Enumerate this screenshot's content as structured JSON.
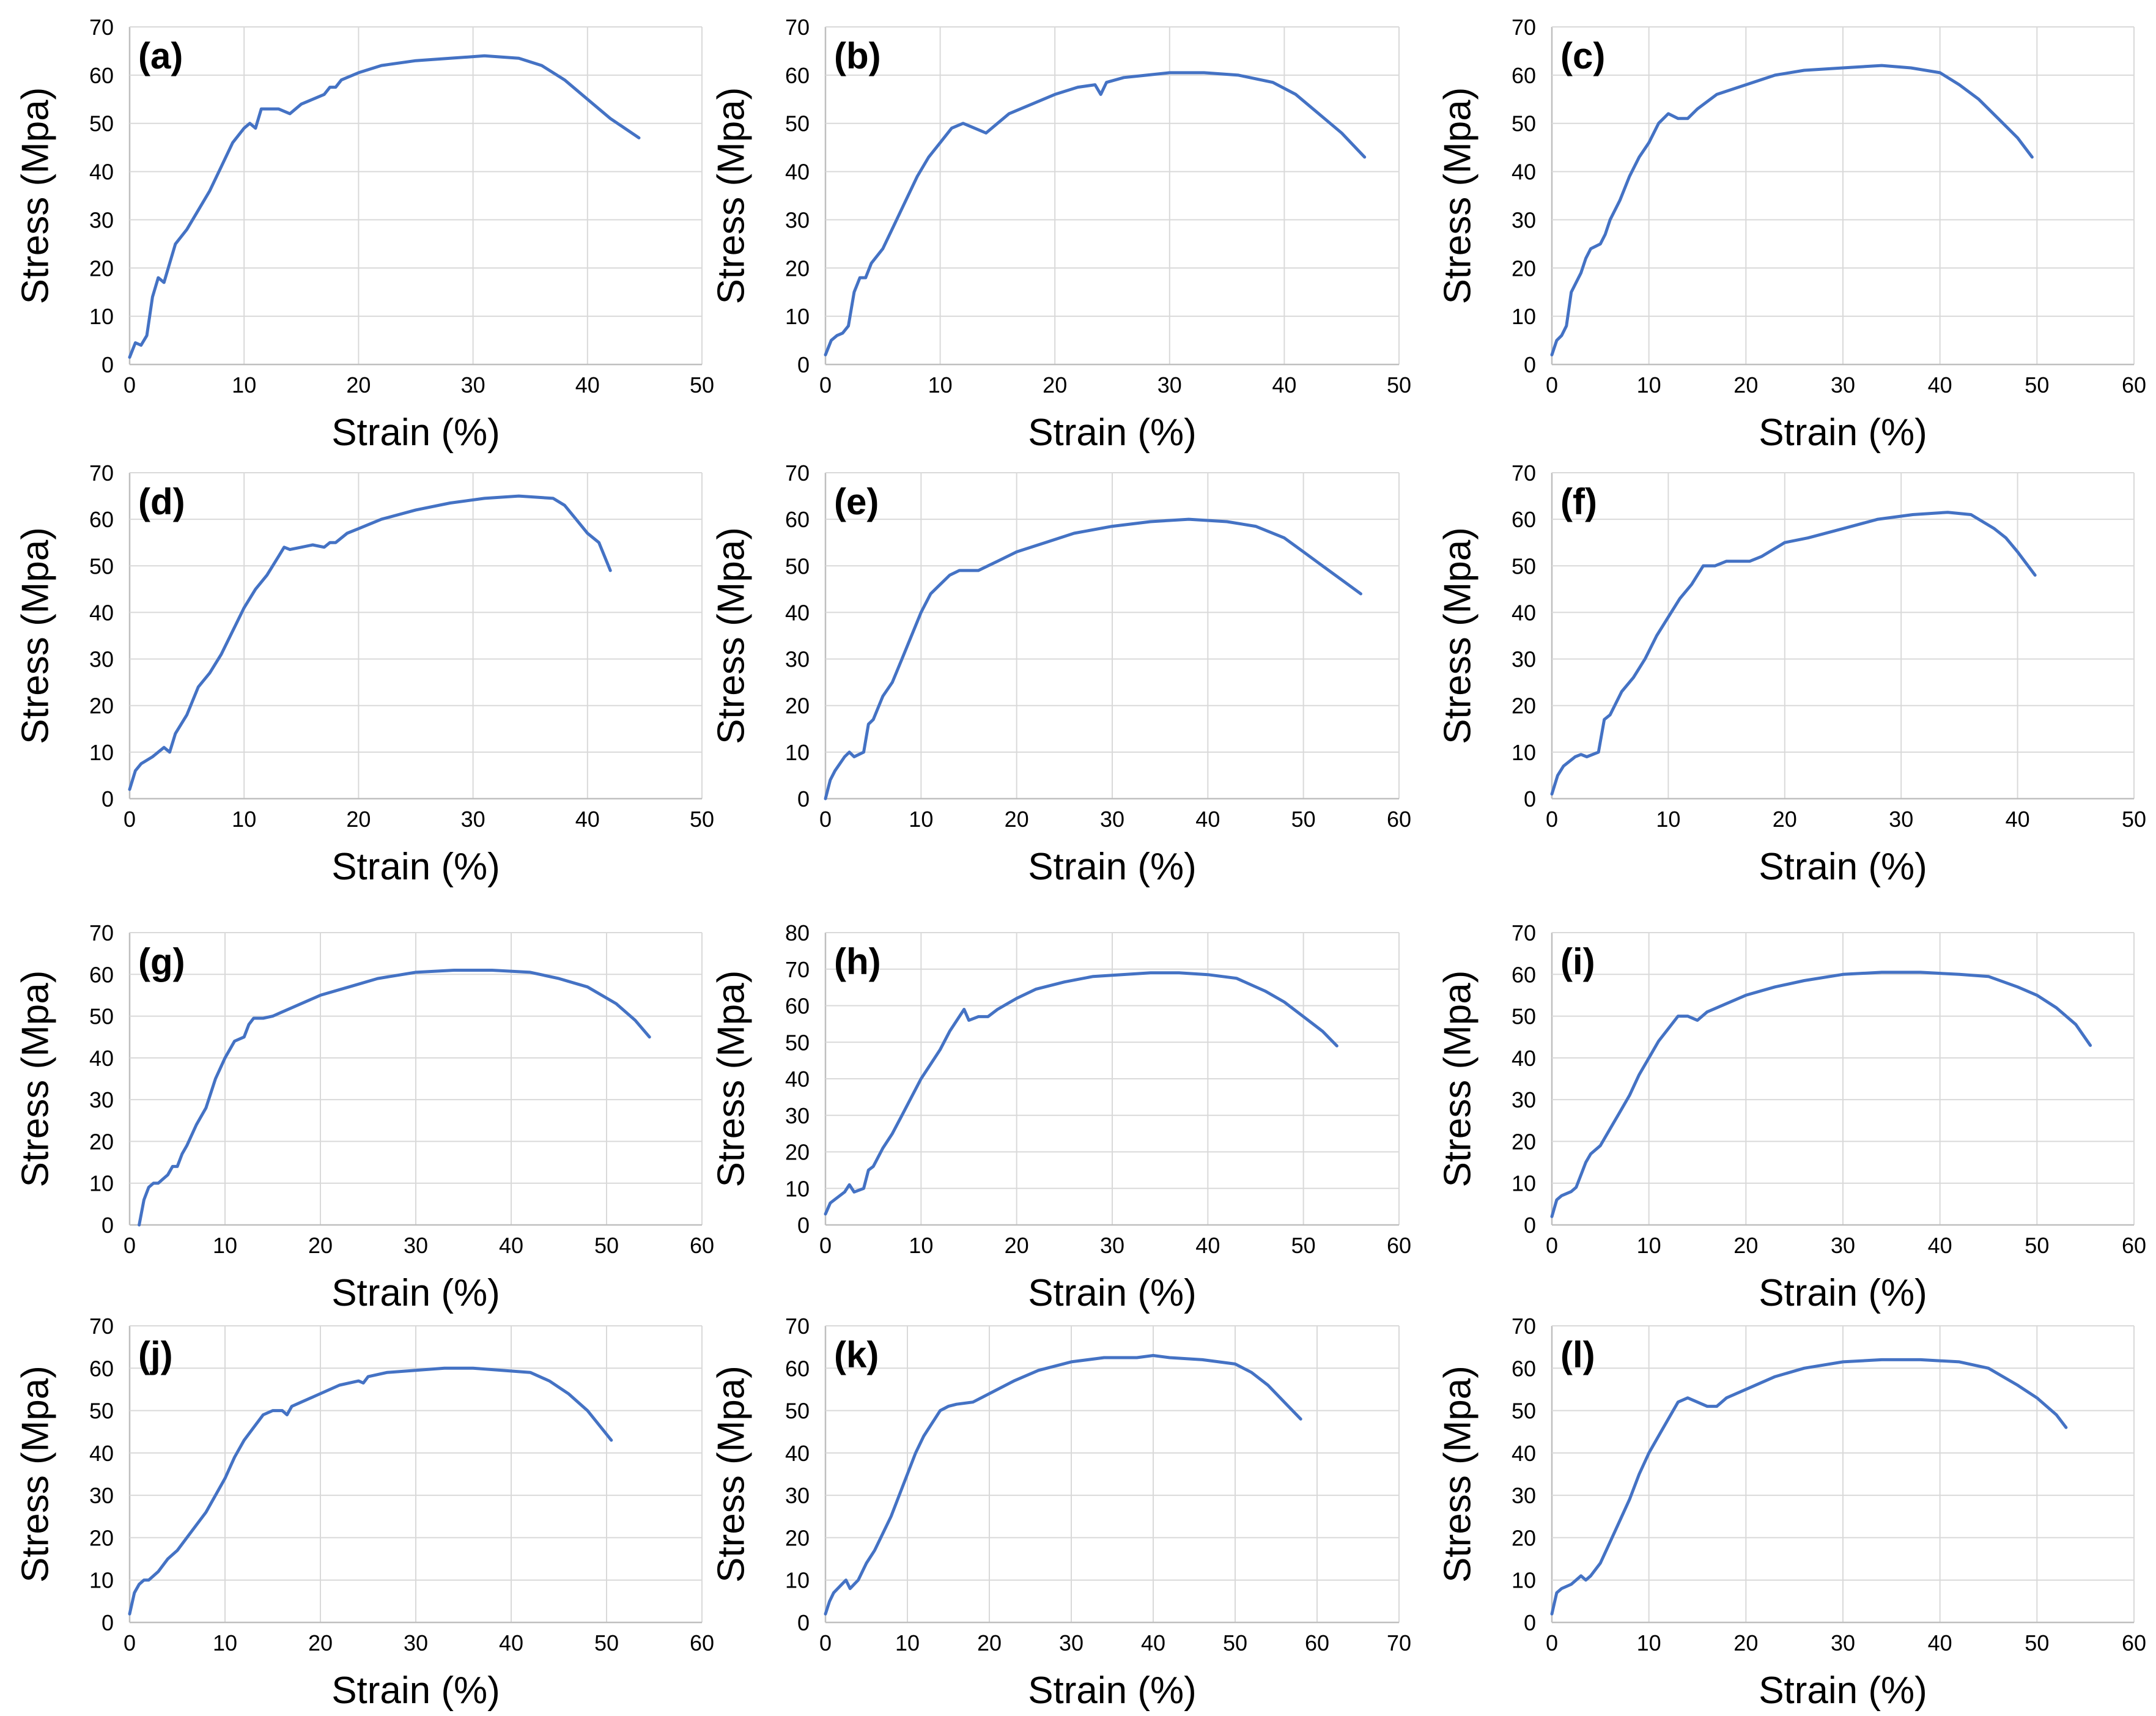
{
  "style": {
    "line_color": "#4472C4",
    "grid_color": "#d9d9d9",
    "text_color": "#000000"
  },
  "chart_data": [
    {
      "type": "line",
      "panel": "(a)",
      "xlabel": "Strain (%)",
      "ylabel": "Stress (Mpa)",
      "xlim": [
        0,
        50
      ],
      "ylim": [
        0,
        70
      ],
      "xticks": [
        "0",
        "10",
        "20",
        "30",
        "40",
        "50"
      ],
      "yticks": [
        "0",
        "10",
        "20",
        "30",
        "40",
        "50",
        "60",
        "70"
      ],
      "x": [
        0,
        0.5,
        1,
        1.5,
        2,
        2.5,
        3,
        3.5,
        4,
        5,
        6,
        7,
        8,
        9,
        10,
        10.5,
        11,
        11.5,
        12,
        13,
        14,
        15,
        16,
        17,
        17.5,
        18,
        18.5,
        20,
        22,
        25,
        28,
        31,
        34,
        36,
        38,
        40,
        42,
        44.5
      ],
      "y": [
        1.5,
        4.5,
        4,
        6,
        14,
        18,
        17,
        21,
        25,
        28,
        32,
        36,
        41,
        46,
        49,
        50,
        49,
        53,
        53,
        53,
        52,
        54,
        55,
        56,
        57.5,
        57.5,
        59,
        60.5,
        62,
        63,
        63.5,
        64,
        63.5,
        62,
        59,
        55,
        51,
        47
      ]
    },
    {
      "type": "line",
      "panel": "(b)",
      "xlabel": "Strain (%)",
      "ylabel": "Stress (Mpa)",
      "xlim": [
        0,
        50
      ],
      "ylim": [
        0,
        70
      ],
      "xticks": [
        "0",
        "10",
        "20",
        "30",
        "40",
        "50"
      ],
      "yticks": [
        "0",
        "10",
        "20",
        "30",
        "40",
        "50",
        "60",
        "70"
      ],
      "x": [
        0,
        0.5,
        1,
        1.5,
        2,
        2.5,
        3,
        3.5,
        4,
        5,
        6,
        7,
        8,
        9,
        10,
        11,
        12,
        13,
        14,
        15,
        16,
        17,
        18,
        20,
        22,
        23.5,
        24,
        24.5,
        26,
        28,
        30,
        33,
        36,
        39,
        41,
        43,
        45,
        47
      ],
      "y": [
        2,
        5,
        6,
        6.5,
        8,
        15,
        18,
        18,
        21,
        24,
        29,
        34,
        39,
        43,
        46,
        49,
        50,
        49,
        48,
        50,
        52,
        53,
        54,
        56,
        57.5,
        58,
        56,
        58.5,
        59.5,
        60,
        60.5,
        60.5,
        60,
        58.5,
        56,
        52,
        48,
        43
      ]
    },
    {
      "type": "line",
      "panel": "(c)",
      "xlabel": "Strain (%)",
      "ylabel": "Stress (Mpa)",
      "xlim": [
        0,
        60
      ],
      "ylim": [
        0,
        70
      ],
      "xticks": [
        "0",
        "10",
        "20",
        "30",
        "40",
        "50",
        "60"
      ],
      "yticks": [
        "0",
        "10",
        "20",
        "30",
        "40",
        "50",
        "60",
        "70"
      ],
      "x": [
        0,
        0.5,
        1,
        1.5,
        2,
        2.5,
        3,
        3.5,
        4,
        5,
        5.5,
        6,
        7,
        8,
        9,
        10,
        11,
        12,
        13,
        14,
        15,
        17,
        20,
        23,
        26,
        30,
        34,
        37,
        40,
        42,
        44,
        46,
        48,
        49.5
      ],
      "y": [
        2,
        5,
        6,
        8,
        15,
        17,
        19,
        22,
        24,
        25,
        27,
        30,
        34,
        39,
        43,
        46,
        50,
        52,
        51,
        51,
        53,
        56,
        58,
        60,
        61,
        61.5,
        62,
        61.5,
        60.5,
        58,
        55,
        51,
        47,
        43
      ]
    },
    {
      "type": "line",
      "panel": "(d)",
      "xlabel": "Strain (%)",
      "ylabel": "Stress (Mpa)",
      "xlim": [
        0,
        50
      ],
      "ylim": [
        0,
        70
      ],
      "xticks": [
        "0",
        "10",
        "20",
        "30",
        "40",
        "50"
      ],
      "yticks": [
        "0",
        "10",
        "20",
        "30",
        "40",
        "50",
        "60",
        "70"
      ],
      "x": [
        0,
        0.5,
        1,
        2,
        3,
        3.5,
        4,
        5,
        6,
        7,
        8,
        9,
        10,
        11,
        12,
        13,
        13.5,
        14,
        15,
        16,
        17,
        17.5,
        18,
        19,
        20,
        22,
        25,
        28,
        31,
        34,
        37,
        38,
        39,
        40,
        41,
        42
      ],
      "y": [
        2,
        6,
        7.5,
        9,
        11,
        10,
        14,
        18,
        24,
        27,
        31,
        36,
        41,
        45,
        48,
        52,
        54,
        53.5,
        54,
        54.5,
        54,
        55,
        55,
        57,
        58,
        60,
        62,
        63.5,
        64.5,
        65,
        64.5,
        63,
        60,
        57,
        55,
        49
      ]
    },
    {
      "type": "line",
      "panel": "(e)",
      "xlabel": "Strain (%)",
      "ylabel": "Stress (Mpa)",
      "xlim": [
        0,
        60
      ],
      "ylim": [
        0,
        70
      ],
      "xticks": [
        "0",
        "10",
        "20",
        "30",
        "40",
        "50",
        "60"
      ],
      "yticks": [
        "0",
        "10",
        "20",
        "30",
        "40",
        "50",
        "60",
        "70"
      ],
      "x": [
        0,
        0.5,
        1,
        2,
        2.5,
        3,
        4,
        4.5,
        5,
        6,
        7,
        8,
        9,
        10,
        11,
        12,
        13,
        14,
        15,
        16,
        17,
        18,
        20,
        23,
        26,
        30,
        34,
        38,
        42,
        45,
        48,
        50,
        52,
        54,
        56
      ],
      "y": [
        0,
        4,
        6,
        9,
        10,
        9,
        10,
        16,
        17,
        22,
        25,
        30,
        35,
        40,
        44,
        46,
        48,
        49,
        49,
        49,
        50,
        51,
        53,
        55,
        57,
        58.5,
        59.5,
        60,
        59.5,
        58.5,
        56,
        53,
        50,
        47,
        44
      ]
    },
    {
      "type": "line",
      "panel": "(f)",
      "xlabel": "Strain (%)",
      "ylabel": "Stress (Mpa)",
      "xlim": [
        0,
        50
      ],
      "ylim": [
        0,
        70
      ],
      "xticks": [
        "0",
        "10",
        "20",
        "30",
        "40",
        "50"
      ],
      "yticks": [
        "0",
        "10",
        "20",
        "30",
        "40",
        "50",
        "60",
        "70"
      ],
      "x": [
        0,
        0.5,
        1,
        2,
        2.5,
        3,
        4,
        4.5,
        5,
        6,
        7,
        8,
        9,
        10,
        11,
        12,
        13,
        14,
        15,
        16,
        17,
        18,
        20,
        22,
        25,
        28,
        31,
        34,
        36,
        38,
        39,
        40,
        41.5
      ],
      "y": [
        1,
        5,
        7,
        9,
        9.5,
        9,
        10,
        17,
        18,
        23,
        26,
        30,
        35,
        39,
        43,
        46,
        50,
        50,
        51,
        51,
        51,
        52,
        55,
        56,
        58,
        60,
        61,
        61.5,
        61,
        58,
        56,
        53,
        48
      ]
    },
    {
      "type": "line",
      "panel": "(g)",
      "xlabel": "Strain (%)",
      "ylabel": "Stress (Mpa)",
      "xlim": [
        0,
        60
      ],
      "ylim": [
        0,
        70
      ],
      "xticks": [
        "0",
        "10",
        "20",
        "30",
        "40",
        "50",
        "60"
      ],
      "yticks": [
        "0",
        "10",
        "20",
        "30",
        "40",
        "50",
        "60",
        "70"
      ],
      "x": [
        1,
        1.5,
        2,
        2.5,
        3,
        3.5,
        4,
        4.5,
        5,
        5.5,
        6,
        7,
        8,
        9,
        10,
        11,
        12,
        12.5,
        13,
        14,
        15,
        16,
        18,
        20,
        23,
        26,
        30,
        34,
        38,
        42,
        45,
        48,
        51,
        53,
        54.5
      ],
      "y": [
        0,
        6,
        9,
        10,
        10,
        11,
        12,
        14,
        14,
        17,
        19,
        24,
        28,
        35,
        40,
        44,
        45,
        48,
        49.5,
        49.5,
        50,
        51,
        53,
        55,
        57,
        59,
        60.5,
        61,
        61,
        60.5,
        59,
        57,
        53,
        49,
        45
      ]
    },
    {
      "type": "line",
      "panel": "(h)",
      "xlabel": "Strain (%)",
      "ylabel": "Stress (Mpa)",
      "xlim": [
        0,
        60
      ],
      "ylim": [
        0,
        80
      ],
      "xticks": [
        "0",
        "10",
        "20",
        "30",
        "40",
        "50",
        "60"
      ],
      "yticks": [
        "0",
        "10",
        "20",
        "30",
        "40",
        "50",
        "60",
        "70",
        "80"
      ],
      "x": [
        0,
        0.5,
        1,
        2,
        2.5,
        3,
        4,
        4.5,
        5,
        6,
        7,
        8,
        9,
        10,
        11,
        12,
        13,
        14,
        14.5,
        15,
        16,
        17,
        18,
        20,
        22,
        25,
        28,
        31,
        34,
        37,
        40,
        43,
        46,
        48,
        50,
        52,
        53.5
      ],
      "y": [
        3,
        6,
        7,
        9,
        11,
        9,
        10,
        15,
        16,
        21,
        25,
        30,
        35,
        40,
        44,
        48,
        53,
        57,
        59,
        56,
        57,
        57,
        59,
        62,
        64.5,
        66.5,
        68,
        68.5,
        69,
        69,
        68.5,
        67.5,
        64,
        61,
        57,
        53,
        49
      ]
    },
    {
      "type": "line",
      "panel": "(i)",
      "xlabel": "Strain (%)",
      "ylabel": "Stress (Mpa)",
      "xlim": [
        0,
        60
      ],
      "ylim": [
        0,
        70
      ],
      "xticks": [
        "0",
        "10",
        "20",
        "30",
        "40",
        "50",
        "60"
      ],
      "yticks": [
        "0",
        "10",
        "20",
        "30",
        "40",
        "50",
        "60",
        "70"
      ],
      "x": [
        0,
        0.5,
        1,
        2,
        2.5,
        3,
        3.5,
        4,
        5,
        6,
        7,
        8,
        9,
        10,
        11,
        12,
        13,
        14,
        15,
        16,
        18,
        20,
        23,
        26,
        30,
        34,
        38,
        42,
        45,
        48,
        50,
        52,
        54,
        55.5
      ],
      "y": [
        2,
        6,
        7,
        8,
        9,
        12,
        15,
        17,
        19,
        23,
        27,
        31,
        36,
        40,
        44,
        47,
        50,
        50,
        49,
        51,
        53,
        55,
        57,
        58.5,
        60,
        60.5,
        60.5,
        60,
        59.5,
        57,
        55,
        52,
        48,
        43
      ]
    },
    {
      "type": "line",
      "panel": "(j)",
      "xlabel": "Strain (%)",
      "ylabel": "Stress (Mpa)",
      "xlim": [
        0,
        60
      ],
      "ylim": [
        0,
        70
      ],
      "xticks": [
        "0",
        "10",
        "20",
        "30",
        "40",
        "50",
        "60"
      ],
      "yticks": [
        "0",
        "10",
        "20",
        "30",
        "40",
        "50",
        "60",
        "70"
      ],
      "x": [
        0,
        0.5,
        1,
        1.5,
        2,
        3,
        4,
        5,
        6,
        7,
        8,
        9,
        10,
        11,
        12,
        13,
        14,
        15,
        16,
        16.5,
        17,
        18,
        20,
        22,
        24,
        24.5,
        25,
        27,
        30,
        33,
        36,
        39,
        42,
        44,
        46,
        48,
        50.5
      ],
      "y": [
        2,
        7,
        9,
        10,
        10,
        12,
        15,
        17,
        20,
        23,
        26,
        30,
        34,
        39,
        43,
        46,
        49,
        50,
        50,
        49,
        51,
        52,
        54,
        56,
        57,
        56.5,
        58,
        59,
        59.5,
        60,
        60,
        59.5,
        59,
        57,
        54,
        50,
        43
      ]
    },
    {
      "type": "line",
      "panel": "(k)",
      "xlabel": "Strain (%)",
      "ylabel": "Stress (Mpa)",
      "xlim": [
        0,
        70
      ],
      "ylim": [
        0,
        70
      ],
      "xticks": [
        "0",
        "10",
        "20",
        "30",
        "40",
        "50",
        "60",
        "70"
      ],
      "yticks": [
        "0",
        "10",
        "20",
        "30",
        "40",
        "50",
        "60",
        "70"
      ],
      "x": [
        0,
        0.5,
        1,
        2,
        2.5,
        3,
        4,
        5,
        6,
        7,
        8,
        9,
        10,
        11,
        12,
        13,
        14,
        15,
        16,
        18,
        20,
        23,
        26,
        30,
        34,
        38,
        40,
        42,
        46,
        50,
        52,
        54,
        56,
        58
      ],
      "y": [
        2,
        5,
        7,
        9,
        10,
        8,
        10,
        14,
        17,
        21,
        25,
        30,
        35,
        40,
        44,
        47,
        50,
        51,
        51.5,
        52,
        54,
        57,
        59.5,
        61.5,
        62.5,
        62.5,
        63,
        62.5,
        62,
        61,
        59,
        56,
        52,
        48
      ]
    },
    {
      "type": "line",
      "panel": "(l)",
      "xlabel": "Strain (%)",
      "ylabel": "Stress (Mpa)",
      "xlim": [
        0,
        60
      ],
      "ylim": [
        0,
        70
      ],
      "xticks": [
        "0",
        "10",
        "20",
        "30",
        "40",
        "50",
        "60"
      ],
      "yticks": [
        "0",
        "10",
        "20",
        "30",
        "40",
        "50",
        "60",
        "70"
      ],
      "x": [
        0,
        0.5,
        1,
        2,
        3,
        3.5,
        4,
        5,
        6,
        7,
        8,
        9,
        10,
        11,
        12,
        13,
        14,
        15,
        16,
        17,
        18,
        20,
        23,
        26,
        30,
        34,
        38,
        42,
        45,
        48,
        50,
        52,
        53
      ],
      "y": [
        2,
        7,
        8,
        9,
        11,
        10,
        11,
        14,
        19,
        24,
        29,
        35,
        40,
        44,
        48,
        52,
        53,
        52,
        51,
        51,
        53,
        55,
        58,
        60,
        61.5,
        62,
        62,
        61.5,
        60,
        56,
        53,
        49,
        46
      ]
    }
  ]
}
